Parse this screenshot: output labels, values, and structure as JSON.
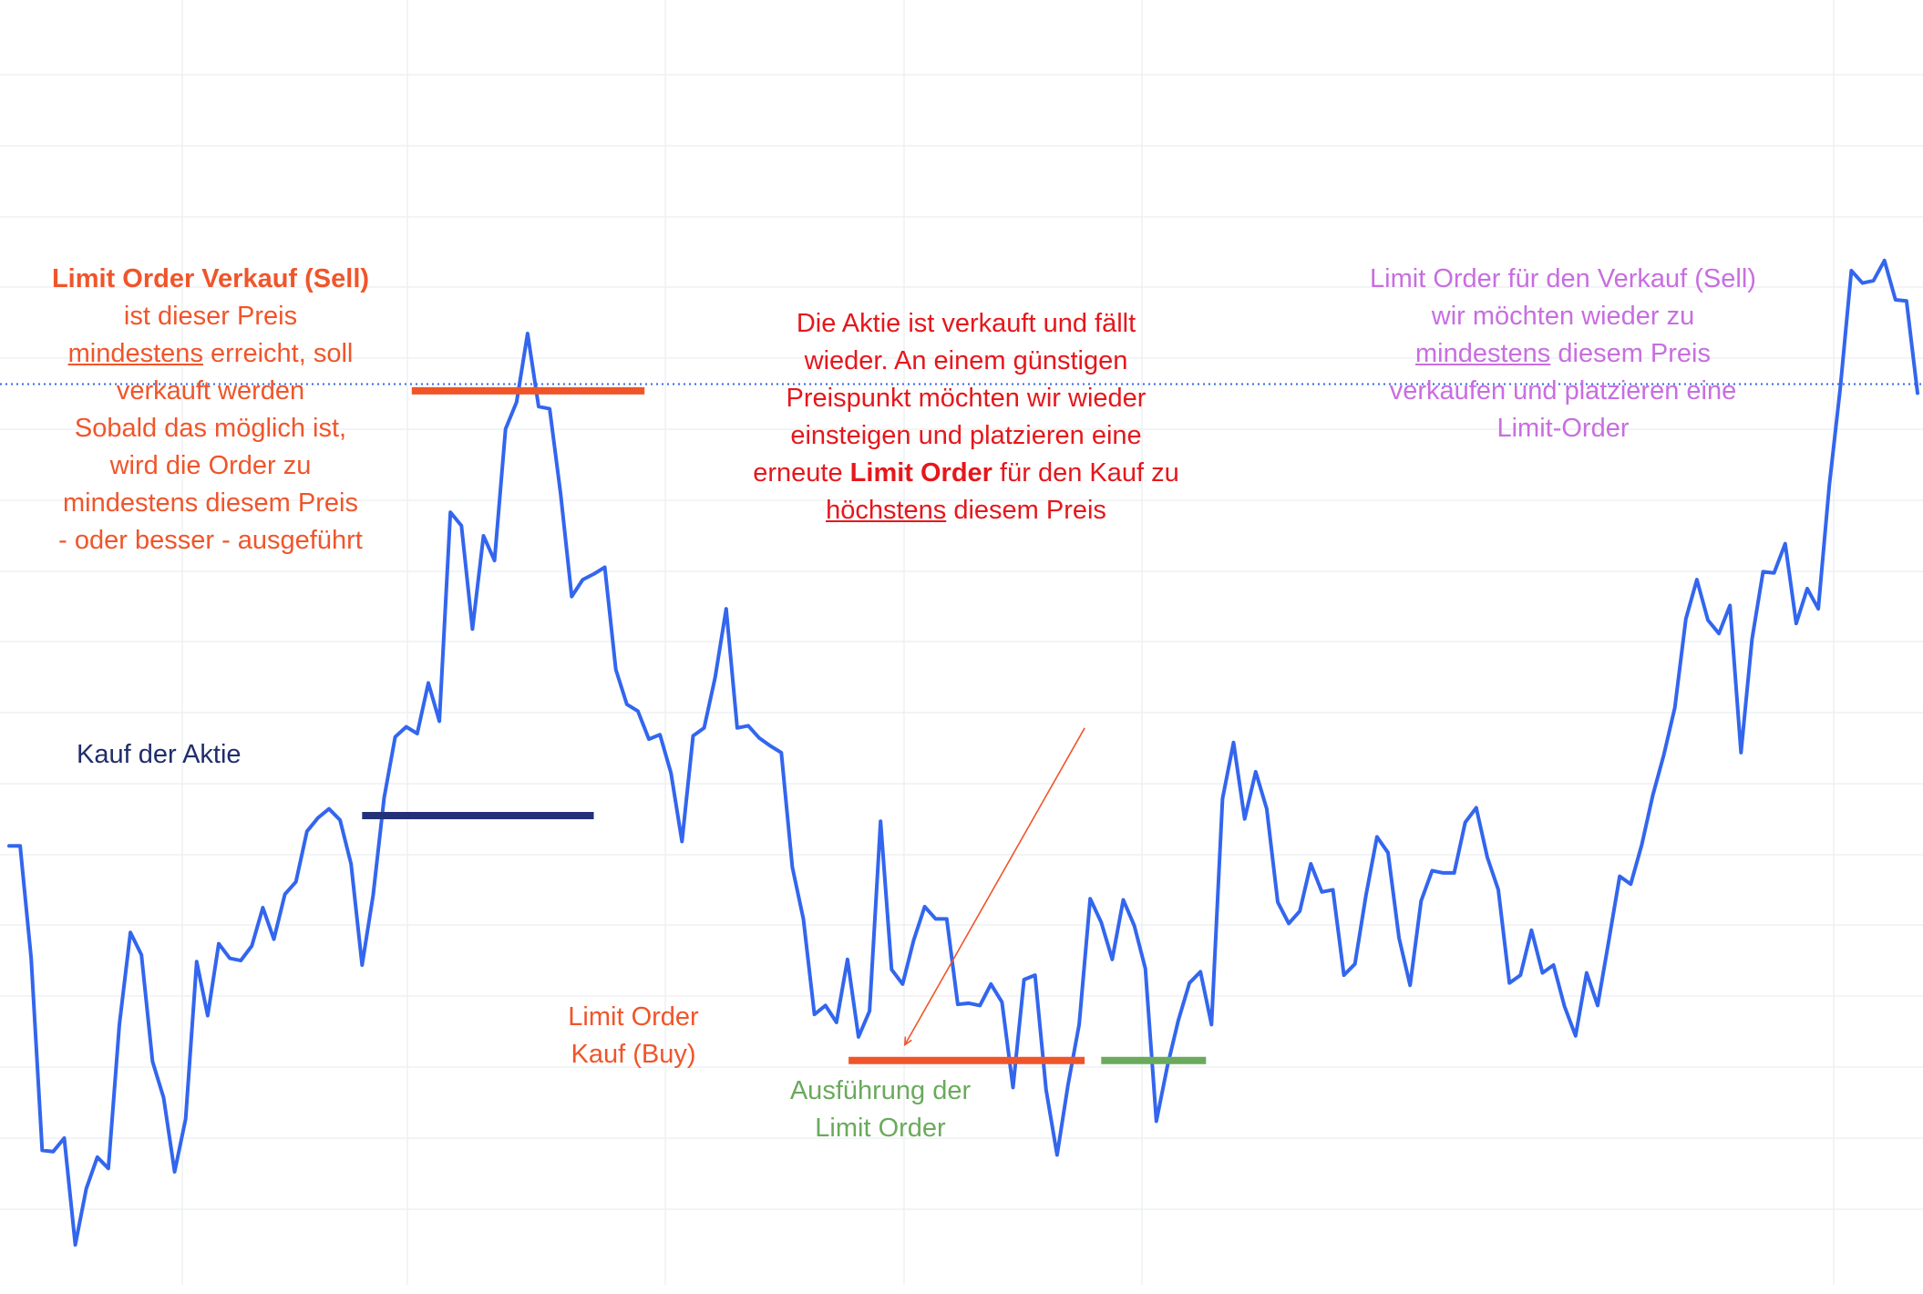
{
  "chart_data": {
    "type": "line",
    "title": "",
    "xlabel": "",
    "ylabel": "",
    "grid": true,
    "ylim": [
      0,
      100
    ],
    "series": [
      {
        "color": "#3366ee",
        "values": [
          35.5,
          35.5,
          25.5,
          8.4,
          8.3,
          9.5,
          0,
          5.0,
          7.8,
          6.8,
          19.6,
          27.8,
          25.8,
          16.3,
          13.1,
          6.5,
          11.2,
          25.2,
          20.4,
          26.8,
          25.5,
          25.3,
          26.6,
          30.0,
          27.2,
          31.2,
          32.3,
          36.8,
          38.0,
          38.8,
          37.8,
          33.9,
          24.9,
          31.1,
          39.8,
          45.2,
          46.1,
          45.5,
          50.0,
          46.6,
          65.2,
          64.0,
          54.8,
          63.1,
          60.9,
          72.6,
          75.0,
          81.1,
          74.6,
          74.4,
          66.8,
          57.7,
          59.2,
          59.7,
          60.3,
          51.2,
          48.1,
          47.5,
          45.0,
          45.4,
          42.0,
          35.9,
          45.3,
          46.0,
          50.5,
          56.6,
          46.0,
          46.2,
          45.1,
          44.4,
          43.8,
          33.6,
          29.0,
          20.5,
          21.3,
          19.8,
          25.4,
          18.5,
          20.8,
          37.7,
          24.5,
          23.2,
          27.1,
          30.1,
          29.0,
          29.0,
          21.4,
          21.5,
          21.3,
          23.2,
          21.6,
          14.0,
          23.6,
          24.0,
          13.8,
          8.0,
          14.3,
          19.6,
          30.8,
          28.7,
          25.4,
          30.7,
          28.4,
          24.6,
          11.0,
          15.9,
          20.0,
          23.3,
          24.3,
          19.6,
          39.7,
          44.7,
          37.9,
          42.1,
          38.8,
          30.5,
          28.6,
          29.7,
          33.9,
          31.4,
          31.6,
          24.0,
          25.0,
          31.1,
          36.3,
          34.9,
          27.3,
          23.1,
          30.6,
          33.3,
          33.1,
          33.1,
          37.6,
          38.9,
          34.5,
          31.6,
          23.3,
          24.0,
          28.0,
          24.2,
          24.9,
          21.2,
          18.6,
          24.2,
          21.3,
          27.0,
          32.8,
          32.1,
          35.6,
          40.0,
          43.6,
          47.8,
          55.7,
          59.2,
          55.6,
          54.4,
          56.9,
          43.8,
          53.9,
          59.9,
          59.8,
          62.4,
          55.3,
          58.4,
          56.6,
          67.6,
          76.3,
          86.7,
          85.6,
          85.8,
          87.6,
          84.1,
          84.0,
          75.8
        ]
      }
    ],
    "levels": [
      {
        "name": "sell-limit-left",
        "value": 76.0,
        "x_from": 36.5,
        "x_to": 57.6,
        "color": "#f0552a"
      },
      {
        "name": "purchase",
        "value": 38.2,
        "x_from": 32.0,
        "x_to": 53.0,
        "color": "#243177"
      },
      {
        "name": "buy-limit",
        "value": 16.4,
        "x_from": 76.1,
        "x_to": 97.5,
        "color": "#f0552a"
      },
      {
        "name": "execution",
        "value": 16.4,
        "x_from": 99.0,
        "x_to": 108.5,
        "color": "#6aaa5c"
      },
      {
        "name": "sell-limit-right",
        "value": 76.4,
        "x_from": 185.0,
        "x_to": 199.5,
        "color": "#c86ee0"
      }
    ],
    "reference_line": {
      "value": 76.6,
      "color": "#3366ee",
      "style": "dotted"
    },
    "arrow": {
      "from": [
        97.5,
        46.0
      ],
      "to": [
        81.2,
        17.8
      ],
      "color": "#f0552a"
    }
  },
  "annotations": {
    "sell_left": {
      "title": "Limit Order Verkauf (Sell)",
      "line1": "ist dieser Preis",
      "line2_u": "mindestens",
      "line2_rest": " erreicht, soll",
      "line3": "verkauft werden",
      "line4": "Sobald das möglich ist,",
      "line5": "wird die Order zu",
      "line6": "mindestens diesem Preis",
      "line7": "- oder besser - ausgeführt"
    },
    "purchase": {
      "label": "Kauf der Aktie"
    },
    "middle": {
      "line1": "Die Aktie ist verkauft und fällt",
      "line2": "wieder. An einem günstigen",
      "line3": "Preispunkt möchten wir wieder",
      "line4": "einsteigen und platzieren eine",
      "line5_pre": "erneute ",
      "line5_bold": "Limit Order",
      "line5_post": " für den Kauf zu",
      "line6_u": "höchstens",
      "line6_rest": " diesem Preis"
    },
    "buy": {
      "line1": "Limit Order",
      "line2": "Kauf (Buy)"
    },
    "execution": {
      "line1": "Ausführung der",
      "line2": "Limit Order"
    },
    "sell_right": {
      "title": "Limit Order für den Verkauf (Sell)",
      "line1": "wir möchten wieder zu",
      "line2_u": "mindestens",
      "line2_rest": " diesem Preis",
      "line3": "verkaufen und platzieren eine",
      "line4": "Limit-Order"
    }
  }
}
